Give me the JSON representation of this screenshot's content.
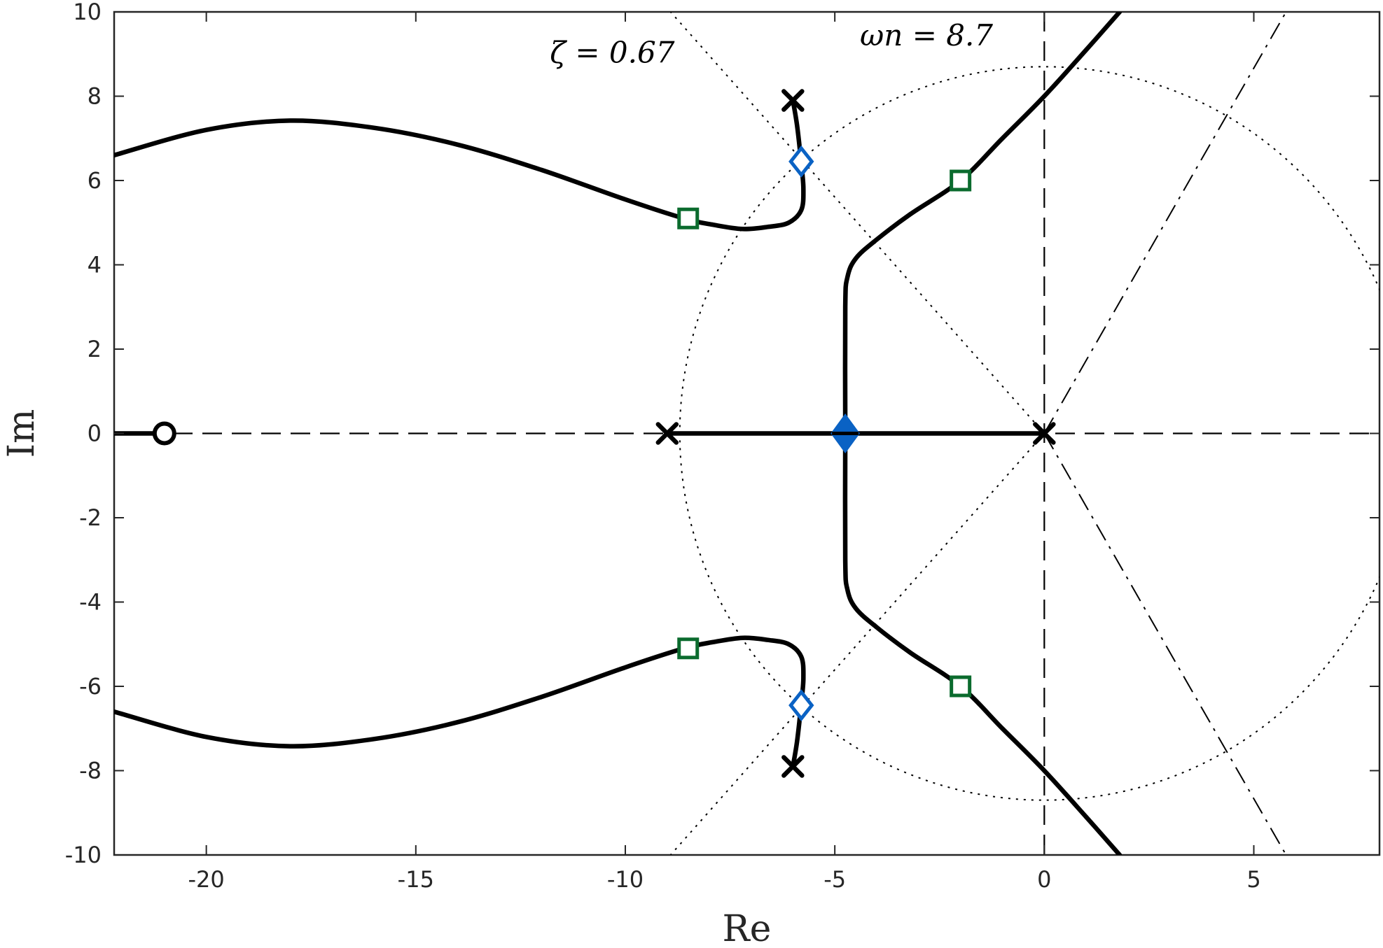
{
  "chart_data": {
    "type": "scatter",
    "title": "",
    "xlabel": "Re",
    "ylabel": "Im",
    "xlim": [
      -22.2,
      8
    ],
    "ylim": [
      -10,
      10
    ],
    "xticks": [
      -20,
      -15,
      -10,
      -5,
      0,
      5
    ],
    "yticks": [
      -10,
      -8,
      -6,
      -4,
      -2,
      0,
      2,
      4,
      6,
      8,
      10
    ],
    "xtick_labels": [
      "-20",
      "-15",
      "-10",
      "-5",
      "0",
      "5"
    ],
    "ytick_labels": [
      "-10",
      "-8",
      "-6",
      "-4",
      "-2",
      "0",
      "2",
      "4",
      "6",
      "8",
      "10"
    ],
    "grid": false,
    "annotations": [
      {
        "text": "ζ = 0.67",
        "x": -11.8,
        "y": 8.8
      },
      {
        "text": "ωn = 8.7",
        "x": -4.4,
        "y": 9.2
      }
    ],
    "colors": {
      "locus": "#000000",
      "square_marker": "#0b6b2e",
      "diamond_marker": "#0a62c4",
      "frame": "#262626"
    },
    "series": [
      {
        "kind": "locus_real_axis",
        "values": [
          [
            -9,
            0
          ],
          [
            0,
            0
          ]
        ]
      },
      {
        "kind": "locus_real_axis_left",
        "values": [
          [
            -22.2,
            0
          ],
          [
            -21,
            0
          ]
        ]
      },
      {
        "kind": "locus_branch_upper_left",
        "values": [
          [
            -6,
            7.9
          ],
          [
            -5.9,
            7.3
          ],
          [
            -5.8,
            6.4
          ],
          [
            -5.75,
            5.8
          ],
          [
            -5.8,
            5.3
          ],
          [
            -6.1,
            5.0
          ],
          [
            -6.6,
            4.9
          ],
          [
            -7.2,
            4.85
          ],
          [
            -7.9,
            4.95
          ],
          [
            -8.6,
            5.1
          ],
          [
            -10,
            5.55
          ],
          [
            -12,
            6.25
          ],
          [
            -14,
            6.85
          ],
          [
            -16,
            7.25
          ],
          [
            -18,
            7.42
          ],
          [
            -20,
            7.2
          ],
          [
            -22.2,
            6.6
          ]
        ]
      },
      {
        "kind": "locus_branch_lower_left",
        "values": [
          [
            -6,
            -7.9
          ],
          [
            -5.9,
            -7.3
          ],
          [
            -5.8,
            -6.4
          ],
          [
            -5.75,
            -5.8
          ],
          [
            -5.8,
            -5.3
          ],
          [
            -6.1,
            -5.0
          ],
          [
            -6.6,
            -4.9
          ],
          [
            -7.2,
            -4.85
          ],
          [
            -7.9,
            -4.95
          ],
          [
            -8.6,
            -5.1
          ],
          [
            -10,
            -5.55
          ],
          [
            -12,
            -6.25
          ],
          [
            -14,
            -6.85
          ],
          [
            -16,
            -7.25
          ],
          [
            -18,
            -7.42
          ],
          [
            -20,
            -7.2
          ],
          [
            -22.2,
            -6.6
          ]
        ]
      },
      {
        "kind": "locus_branch_upper_right",
        "values": [
          [
            -4.75,
            0
          ],
          [
            -4.75,
            3.0
          ],
          [
            -4.7,
            3.7
          ],
          [
            -4.5,
            4.15
          ],
          [
            -4.0,
            4.6
          ],
          [
            -3.2,
            5.2
          ],
          [
            -2.0,
            6.0
          ],
          [
            -1.0,
            7.0
          ],
          [
            0,
            8.0
          ],
          [
            1.0,
            9.1
          ],
          [
            1.8,
            10
          ]
        ]
      },
      {
        "kind": "locus_branch_lower_right",
        "values": [
          [
            -4.75,
            0
          ],
          [
            -4.75,
            -3.0
          ],
          [
            -4.7,
            -3.7
          ],
          [
            -4.5,
            -4.15
          ],
          [
            -4.0,
            -4.6
          ],
          [
            -3.2,
            -5.2
          ],
          [
            -2.0,
            -6.0
          ],
          [
            -1.0,
            -7.0
          ],
          [
            0,
            -8.0
          ],
          [
            1.0,
            -9.1
          ],
          [
            1.8,
            -10
          ]
        ]
      },
      {
        "kind": "poles",
        "values": [
          [
            -9,
            0
          ],
          [
            0,
            0
          ],
          [
            -6,
            7.9
          ],
          [
            -6,
            -7.9
          ]
        ]
      },
      {
        "kind": "zeros",
        "values": [
          [
            -21,
            0
          ]
        ]
      },
      {
        "kind": "squares",
        "values": [
          [
            -8.5,
            5.1
          ],
          [
            -8.5,
            -5.1
          ],
          [
            -2,
            6.0
          ],
          [
            -2,
            -6.0
          ]
        ]
      },
      {
        "kind": "diamonds_open",
        "values": [
          [
            -5.8,
            6.45
          ],
          [
            -5.8,
            -6.45
          ]
        ]
      },
      {
        "kind": "diamonds_filled",
        "values": [
          [
            -4.75,
            0
          ]
        ]
      },
      {
        "kind": "asymptotes",
        "values": [
          [
            0,
            0
          ],
          [
            5.77,
            10
          ],
          [
            0,
            0
          ],
          [
            5.77,
            -10
          ]
        ]
      },
      {
        "kind": "damping_line_zeta_0.67",
        "values": [
          [
            0,
            0
          ],
          [
            -8.92,
            10
          ],
          [
            0,
            0
          ],
          [
            -8.92,
            -10
          ]
        ]
      },
      {
        "kind": "natural_frequency_circle_wn_8.7",
        "values": [
          [
            0,
            0
          ],
          [
            8.7,
            8.7
          ]
        ]
      }
    ]
  }
}
